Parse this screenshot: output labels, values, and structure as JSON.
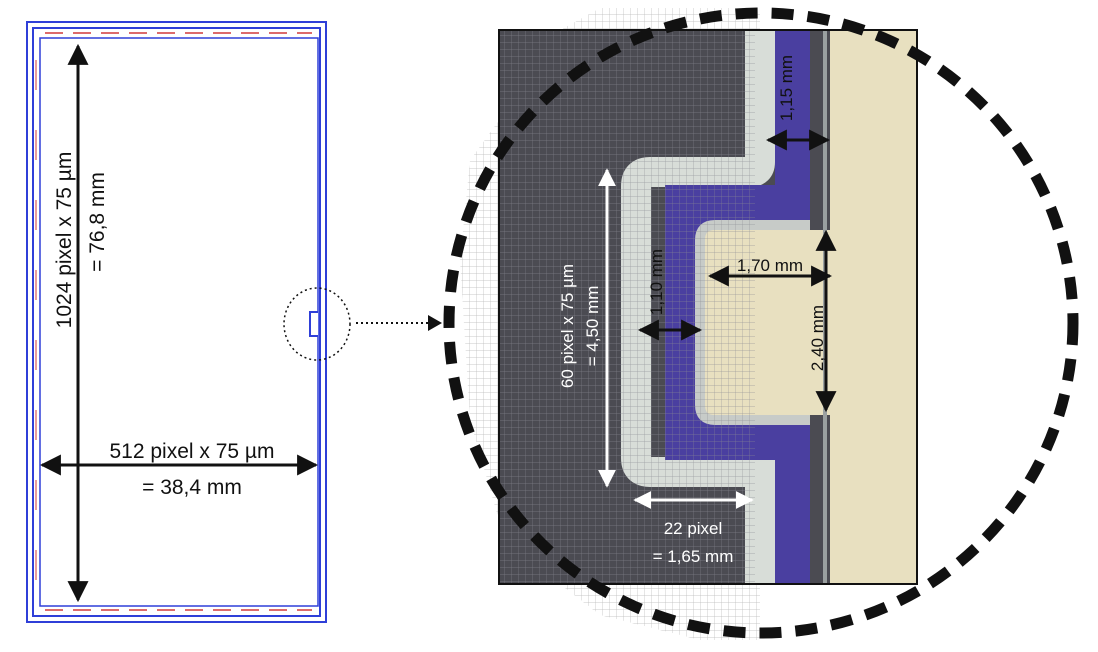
{
  "left_sensor": {
    "height_label_line1": "1024 pixel x 75 µm",
    "height_label_line2": "= 76,8 mm",
    "width_label_line1": "512 pixel x 75 µm",
    "width_label_line2": "= 38,4 mm"
  },
  "zoom_view": {
    "height_60_line1": "60 pixel x 75 µm",
    "height_60_line2": "= 4,50 mm",
    "dim_115": "1,15 mm",
    "dim_110": "1,10 mm",
    "dim_170": "1,70 mm",
    "dim_240": "2,40 mm",
    "width_22_line1": "22 pixel",
    "width_22_line2": "= 1,65 mm"
  },
  "colors": {
    "frame_blue": "#2f3fd8",
    "accent_red": "#d23a3a",
    "dark_substrate": "#4b4b52",
    "slot_purple": "#4a3fa0",
    "metal_light": "#d8ddd8",
    "beige": "#e8e0c0",
    "arrow_black": "#111111"
  }
}
